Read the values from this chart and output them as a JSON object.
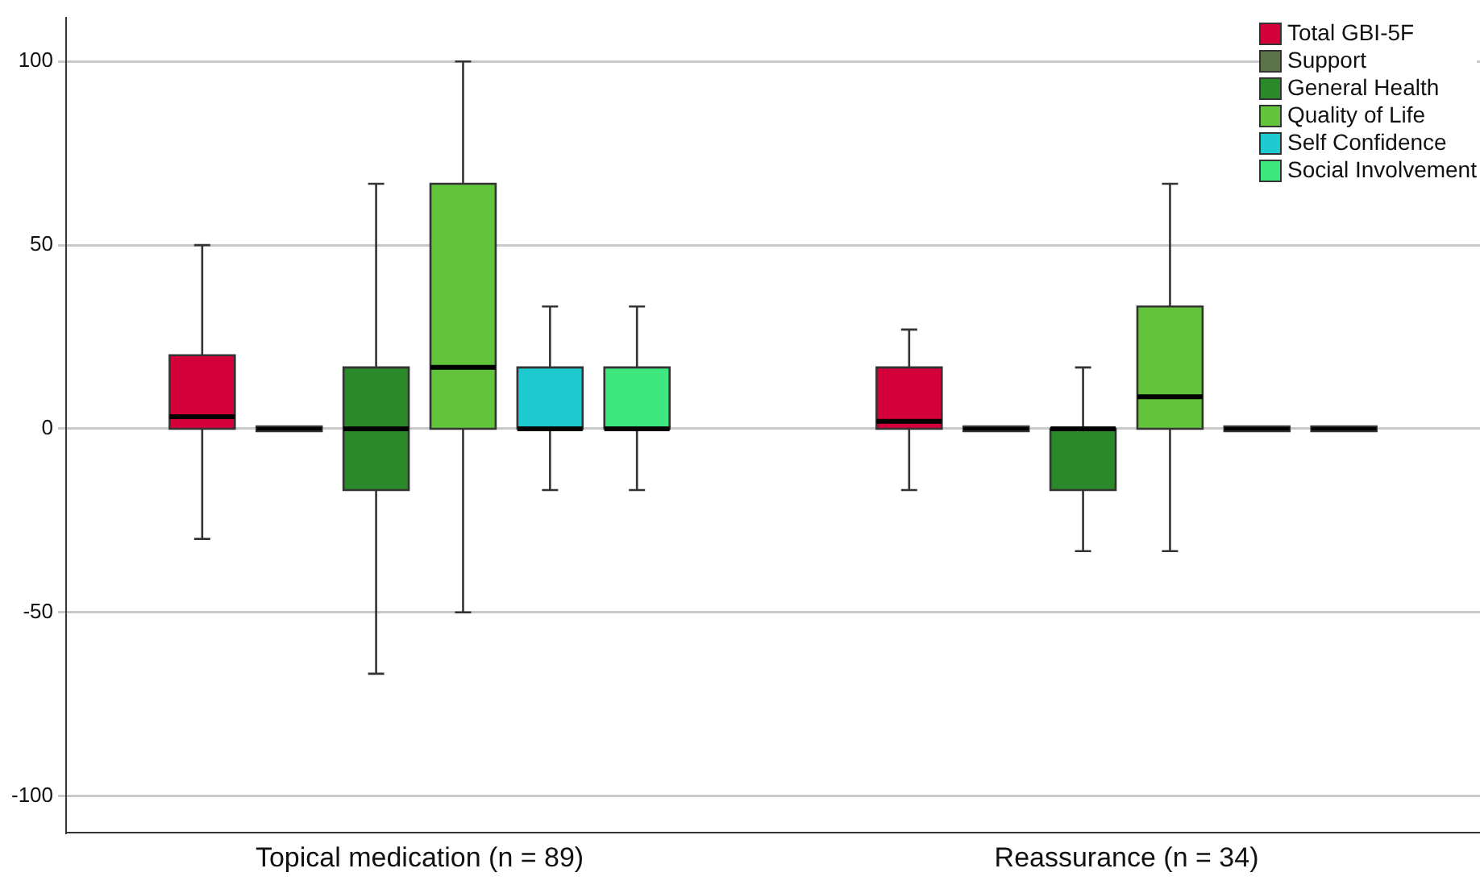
{
  "chart_data": {
    "type": "box",
    "categories": [
      "Topical medication (n = 89)",
      "Reassurance (n = 34)"
    ],
    "ylim": [
      -110,
      112
    ],
    "yticks": [
      -100,
      -50,
      0,
      50,
      100
    ],
    "grid": "y",
    "legend": "top right",
    "series": [
      {
        "name": "Total GBI-5F",
        "color": "#d4003a",
        "boxes": [
          {
            "low": -30,
            "q1": 0,
            "median": 3.3,
            "q3": 20,
            "high": 50
          },
          {
            "low": -16.7,
            "q1": 0,
            "median": 2,
            "q3": 16.7,
            "high": 27
          }
        ]
      },
      {
        "name": "Support",
        "color": "#5a7348",
        "boxes": [
          {
            "low": 0,
            "q1": 0,
            "median": 0,
            "q3": 0,
            "high": 0
          },
          {
            "low": 0,
            "q1": 0,
            "median": 0,
            "q3": 0,
            "high": 0
          }
        ]
      },
      {
        "name": "General Health",
        "color": "#2a8a2a",
        "boxes": [
          {
            "low": -66.7,
            "q1": -16.7,
            "median": 0,
            "q3": 16.7,
            "high": 66.7
          },
          {
            "low": -33.3,
            "q1": -16.7,
            "median": 0,
            "q3": 0,
            "high": 16.7
          }
        ]
      },
      {
        "name": "Quality of Life",
        "color": "#62c43a",
        "boxes": [
          {
            "low": -50,
            "q1": 0,
            "median": 16.7,
            "q3": 66.7,
            "high": 100
          },
          {
            "low": -33.3,
            "q1": 0,
            "median": 8.7,
            "q3": 33.3,
            "high": 66.7
          }
        ]
      },
      {
        "name": "Self Confidence",
        "color": "#1ccad0",
        "boxes": [
          {
            "low": -16.7,
            "q1": 0,
            "median": 0,
            "q3": 16.7,
            "high": 33.3
          },
          {
            "low": 0,
            "q1": 0,
            "median": 0,
            "q3": 0,
            "high": 0
          }
        ]
      },
      {
        "name": "Social Involvement",
        "color": "#3ee87e",
        "boxes": [
          {
            "low": -16.7,
            "q1": 0,
            "median": 0,
            "q3": 16.7,
            "high": 33.3
          },
          {
            "low": 0,
            "q1": 0,
            "median": 0,
            "q3": 0,
            "high": 0
          }
        ]
      }
    ]
  }
}
